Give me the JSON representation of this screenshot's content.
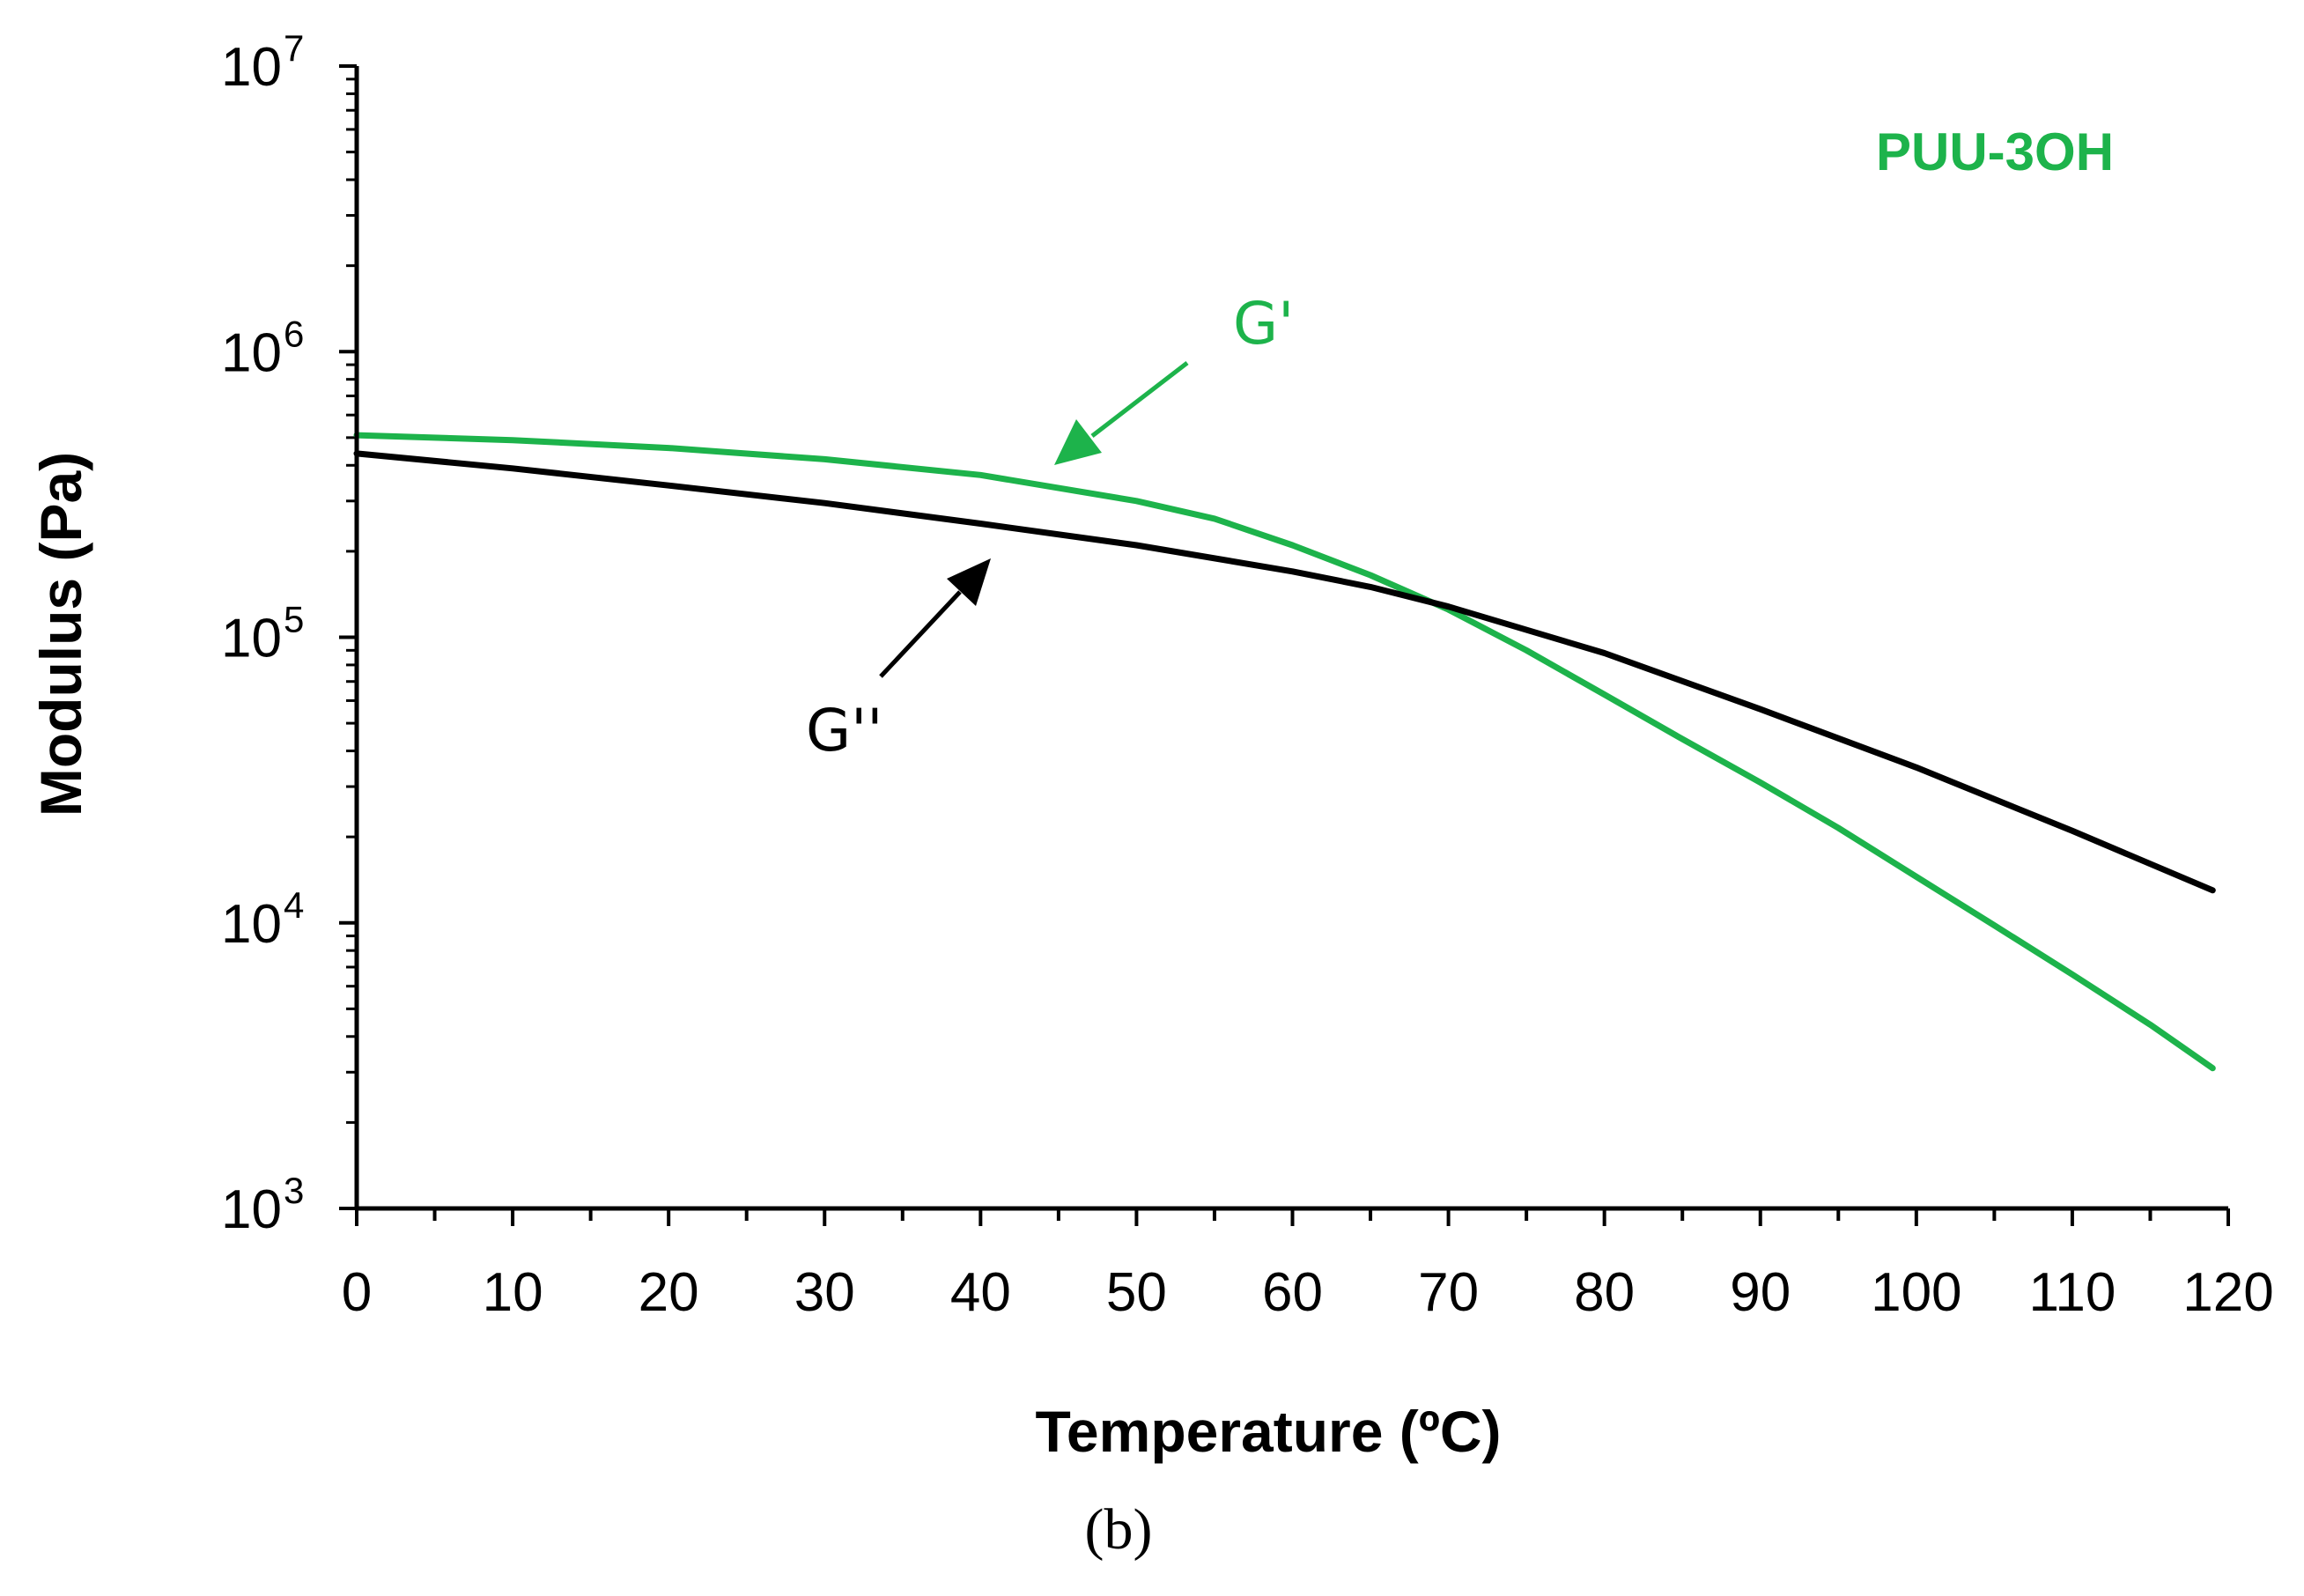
{
  "chart_data": {
    "type": "line",
    "title": "",
    "xlabel": "Temperature (ºC)",
    "ylabel": "Modulus  (Pa)",
    "xlim": [
      0,
      120
    ],
    "ylim": [
      1000,
      10000000
    ],
    "yscale": "log",
    "x_ticks": [
      0,
      10,
      20,
      30,
      40,
      50,
      60,
      70,
      80,
      90,
      100,
      110,
      120
    ],
    "y_tick_labels": [
      {
        "base": "10",
        "exp": "3"
      },
      {
        "base": "10",
        "exp": "4"
      },
      {
        "base": "10",
        "exp": "5"
      },
      {
        "base": "10",
        "exp": "6"
      },
      {
        "base": "10",
        "exp": "7"
      }
    ],
    "series": [
      {
        "name": "G'",
        "color": "#1db34b",
        "x": [
          0,
          10,
          20,
          30,
          40,
          50,
          55,
          60,
          65,
          70,
          75,
          80,
          85,
          90,
          95,
          100,
          105,
          110,
          115,
          119
        ],
        "y": [
          510000,
          490000,
          460000,
          420000,
          370000,
          300000,
          260000,
          210000,
          165000,
          125000,
          90000,
          63000,
          44000,
          31000,
          21500,
          14500,
          9800,
          6600,
          4400,
          3100
        ]
      },
      {
        "name": "G''",
        "color": "#000000",
        "x": [
          0,
          10,
          20,
          30,
          40,
          50,
          60,
          65,
          70,
          80,
          90,
          100,
          110,
          119
        ],
        "y": [
          440000,
          390000,
          340000,
          295000,
          250000,
          210000,
          170000,
          150000,
          128000,
          88000,
          56000,
          35000,
          21000,
          13000
        ]
      }
    ],
    "annotations": [
      {
        "text": "G'",
        "color": "#1db34b",
        "points_to": {
          "x": 45,
          "y": 340000
        }
      },
      {
        "text": "G''",
        "color": "#000000",
        "points_to": {
          "x": 41,
          "y": 250000
        }
      }
    ],
    "sample_label": {
      "text": "PUU-3OH",
      "color": "#1db34b"
    },
    "caption": "(b)"
  }
}
